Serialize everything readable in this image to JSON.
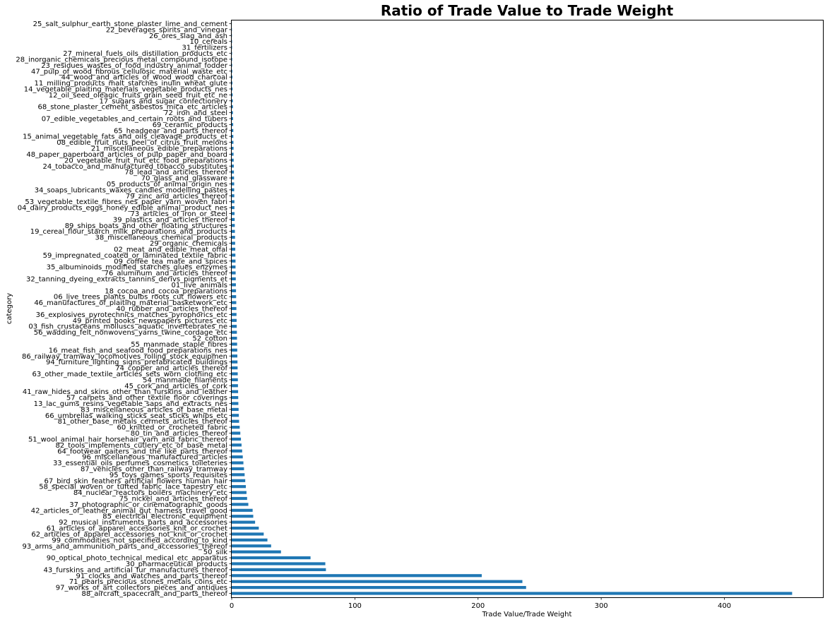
{
  "chart_data": {
    "type": "bar",
    "orientation": "horizontal",
    "title": "Ratio of Trade Value to Trade Weight",
    "xlabel": "Trade Value/Trade Weight",
    "ylabel": "category",
    "xlim": [
      0,
      480
    ],
    "xticks": [
      0,
      100,
      200,
      300,
      400
    ],
    "grid": false,
    "color": "#1f77b4",
    "categories": [
      "25_salt_sulphur_earth_stone_plaster_lime_and_cement",
      "22_beverages_spirits_and_vinegar",
      "26_ores_slag_and_ash",
      "10_cereals",
      "31_fertilizers",
      "27_mineral_fuels_oils_distillation_products_etc",
      "28_inorganic_chemicals_precious_metal_compound_isotope",
      "23_residues_wastes_of_food_industry_animal_fodder",
      "47_pulp_of_wood_fibrous_cellulosic_material_waste_etc",
      "44_wood_and_articles_of_wood_wood_charcoal",
      "11_milling_products_malt_starches_inulin_wheat_glute",
      "14_vegetable_plaiting_materials_vegetable_products_nes",
      "12_oil_seed_oleagic_fruits_grain_seed_fruit_etc_ne",
      "17_sugars_and_sugar_confectionery",
      "68_stone_plaster_cement_asbestos_mica_etc_articles",
      "72_iron_and_steel",
      "07_edible_vegetables_and_certain_roots_and_tubers",
      "69_ceramic_products",
      "65_headgear_and_parts_thereof",
      "15_animal_vegetable_fats_and_oils_cleavage_products_et",
      "08_edible_fruit_nuts_peel_of_citrus_fruit_melons",
      "21_miscellaneous_edible_preparations",
      "48_paper_paperboard_articles_of_pulp_paper_and_board",
      "20_vegetable_fruit_nut_etc_food_preparations",
      "24_tobacco_and_manufactured_tobacco_substitutes",
      "78_lead_and_articles_thereof",
      "70_glass_and_glassware",
      "05_products_of_animal_origin_nes",
      "34_soaps_lubricants_waxes_candles_modelling_pastes",
      "79_zinc_and_articles_thereof",
      "53_vegetable_textile_fibres_nes_paper_yarn_woven_fabri",
      "04_dairy_products_eggs_honey_edible_animal_product_nes",
      "73_articles_of_iron_or_steel",
      "39_plastics_and_articles_thereof",
      "89_ships_boats_and_other_floating_structures",
      "19_cereal_flour_starch_milk_preparations_and_products",
      "38_miscellaneous_chemical_products",
      "29_organic_chemicals",
      "02_meat_and_edible_meat_offal",
      "59_impregnated_coated_or_laminated_textile_fabric",
      "09_coffee_tea_mate_and_spices",
      "35_albuminoids_modified_starches_glues_enzymes",
      "76_aluminum_and_articles_thereof",
      "32_tanning_dyeing_extracts_tannins_derivs_pigments_et",
      "01_live_animals",
      "18_cocoa_and_cocoa_preparations",
      "06_live_trees_plants_bulbs_roots_cut_flowers_etc",
      "46_manufactures_of_plaiting_material_basketwork_etc",
      "40_rubber_and_articles_thereof",
      "36_explosives_pyrotechnics_matches_pyrophorics_etc",
      "49_printed_books_newspapers_pictures_etc",
      "03_fish_crustaceans_molluscs_aquatic_invertebrates_ne",
      "56_wadding_felt_nonwovens_yarns_twine_cordage_etc",
      "52_cotton",
      "55_manmade_staple_fibres",
      "16_meat_fish_and_seafood_food_preparations_nes",
      "86_railway_tramway_locomotives_rolling_stock_equipmen",
      "94_furniture_lighting_signs_prefabricated_buildings",
      "74_copper_and_articles_thereof",
      "63_other_made_textile_articles_sets_worn_clothing_etc",
      "54_manmade_filaments",
      "45_cork_and_articles_of_cork",
      "41_raw_hides_and_skins_other_than_furskins_and_leather",
      "57_carpets_and_other_textile_floor_coverings",
      "13_lac_gums_resins_vegetable_saps_and_extracts_nes",
      "83_miscellaneous_articles_of_base_metal",
      "66_umbrellas_walking_sticks_seat_sticks_whips_etc",
      "81_other_base_metals_cermets_articles_thereof",
      "60_knitted_or_crocheted_fabric",
      "80_tin_and_articles_thereof",
      "51_wool_animal_hair_horsehair_yarn_and_fabric_thereof",
      "82_tools_implements_cutlery_etc_of_base_metal",
      "64_footwear_gaiters_and_the_like_parts_thereof",
      "96_miscellaneous_manufactured_articles",
      "33_essential_oils_perfumes_cosmetics_toileteries",
      "87_vehicles_other_than_railway_tramway",
      "95_toys_games_sports_requisites",
      "67_bird_skin_feathers_artificial_flowers_human_hair",
      "58_special_woven_or_tufted_fabric_lace_tapestry_etc",
      "84_nuclear_reactors_boilers_machinery_etc",
      "75_nickel_and_articles_thereof",
      "37_photographic_or_cinematographic_goods",
      "42_articles_of_leather_animal_gut_harness_travel_good",
      "85_electrical_electronic_equipment",
      "92_musical_instruments_parts_and_accessories",
      "61_articles_of_apparel_accessories_knit_or_crochet",
      "62_articles_of_apparel_accessories_not_knit_or_crochet",
      "99_commodities_not_specified_according_to_kind",
      "93_arms_and_ammunition_parts_and_accessories_thereof",
      "50_silk",
      "90_optical_photo_technical_medical_etc_apparatus",
      "30_pharmaceutical_products",
      "43_furskins_and_artificial_fur_manufactures_thereof",
      "91_clocks_and_watches_and_parts_thereof",
      "71_pearls_precious_stones_metals_coins_etc",
      "97_works_of_art_collectors_pieces_and_antiques",
      "88_aircraft_spacecraft_and_parts_thereof"
    ],
    "values": [
      0.1,
      0.2,
      0.2,
      0.3,
      0.3,
      0.3,
      0.4,
      0.4,
      0.5,
      0.6,
      0.6,
      0.7,
      0.8,
      0.9,
      1.0,
      1.0,
      1.1,
      1.2,
      1.3,
      1.3,
      1.4,
      1.5,
      1.5,
      1.6,
      1.7,
      1.8,
      1.9,
      2.0,
      2.0,
      2.1,
      2.2,
      2.2,
      2.3,
      2.4,
      2.5,
      2.6,
      2.7,
      2.8,
      2.9,
      3.0,
      3.1,
      3.1,
      3.2,
      3.3,
      3.4,
      3.5,
      3.6,
      3.7,
      3.8,
      3.9,
      4.0,
      4.1,
      4.2,
      4.3,
      4.4,
      4.5,
      4.6,
      4.7,
      4.8,
      4.9,
      5.0,
      5.1,
      5.2,
      5.3,
      5.4,
      5.6,
      5.8,
      6.0,
      6.5,
      7.0,
      7.5,
      8.0,
      8.5,
      9.0,
      9.5,
      10.0,
      10.5,
      11.0,
      11.5,
      12.0,
      12.5,
      13.5,
      17.0,
      17.5,
      19.0,
      22.0,
      26.0,
      29.0,
      32.0,
      40.0,
      64.0,
      76.0,
      76.5,
      203.0,
      236.0,
      239.0,
      455.0
    ]
  }
}
